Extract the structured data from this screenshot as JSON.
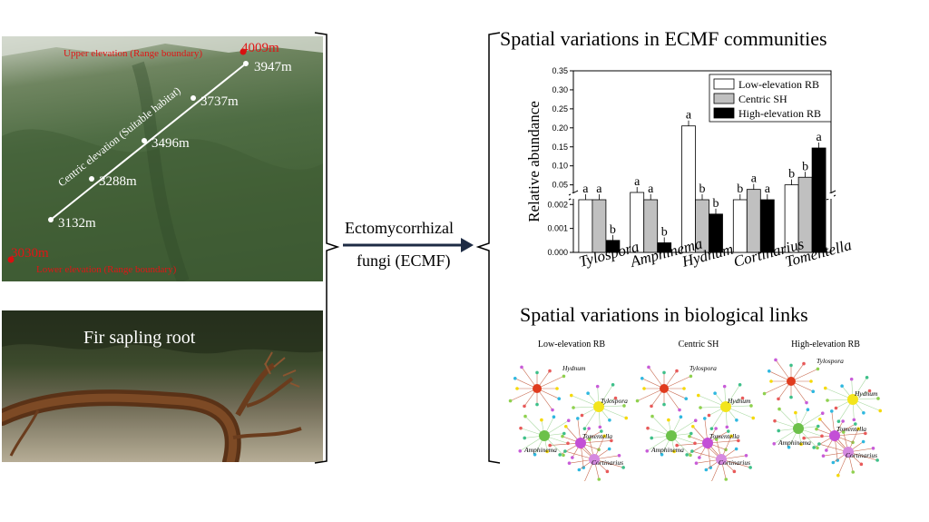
{
  "photo": {
    "upper_label": "Upper elevation (Range boundary)",
    "upper_elev": "4009m",
    "centric_label": "Centric elevation (Suitable habitat)",
    "lower_elev": "3030m",
    "lower_label": "Lower elevation (Range boundary)",
    "points": [
      "3947m",
      "3737m",
      "3496m",
      "3288m",
      "3132m"
    ],
    "root_caption": "Fir sapling root"
  },
  "arrow": {
    "line1": "Ectomycorrhizal",
    "line2": "fungi (ECMF)"
  },
  "top_title": "Spatial variations in ECMF communities",
  "bottom_title": "Spatial variations in biological links",
  "chart_data": {
    "type": "bar",
    "ylabel": "Relative abundance",
    "categories": [
      "Tylospora",
      "Amphinema",
      "Hydnum",
      "Cortinarius",
      "Tomentella"
    ],
    "series": [
      {
        "name": "Low-elevation RB",
        "color": "#ffffff",
        "values": [
          0.025,
          0.03,
          0.205,
          0.015,
          0.05
        ],
        "letters": [
          "a",
          "a",
          "a",
          "b",
          "b"
        ]
      },
      {
        "name": "Centric SH",
        "color": "#c0c0c0",
        "values": [
          0.017,
          0.018,
          0.025,
          0.038,
          0.07
        ],
        "letters": [
          "a",
          "a",
          "b",
          "a",
          "b"
        ]
      },
      {
        "name": "High-elevation RB",
        "color": "#000000",
        "values": [
          0.0005,
          0.0004,
          0.0016,
          0.02,
          0.147
        ],
        "letters": [
          "b",
          "b",
          "b",
          "a",
          "a"
        ]
      }
    ],
    "y_ticks_lower": [
      "0.000",
      "0.001",
      "0.002"
    ],
    "y_ticks_upper": [
      "0.05",
      "0.10",
      "0.15",
      "0.20",
      "0.25",
      "0.30",
      "0.35"
    ],
    "ylim_lower": [
      0,
      0.0022
    ],
    "ylim_upper": [
      0.03,
      0.35
    ],
    "legend_position": "top-right"
  },
  "networks": [
    {
      "title": "Low-elevation RB",
      "labels": [
        "Hydnum",
        "Tylospora",
        "Tomentella",
        "Amphinema",
        "Cortinarius"
      ]
    },
    {
      "title": "Centric SH",
      "labels": [
        "Tylospora",
        "Hydnum",
        "Tomentella",
        "Amphinema",
        "Cortinarius"
      ]
    },
    {
      "title": "High-elevation RB",
      "labels": [
        "Tylospora",
        "Hydnum",
        "Tomentella",
        "Amphinema",
        "Cortinarius"
      ]
    }
  ]
}
